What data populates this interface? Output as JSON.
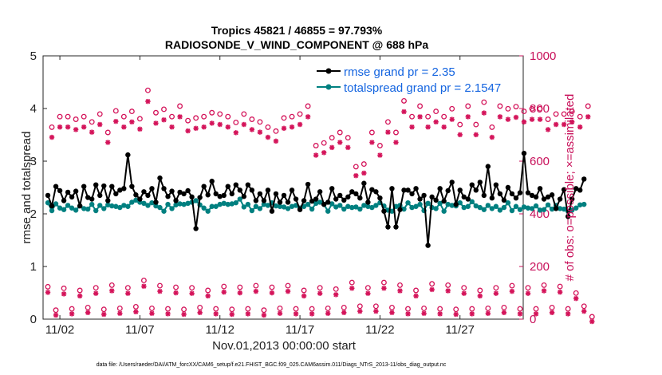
{
  "chart_data": {
    "type": "line",
    "title_line1": "Tropics 45821 / 46855 = 97.793%",
    "title_line2": "RADIOSONDE_V_WIND_COMPONENT @ 688 hPa",
    "xlabel": "Nov.01,2013 00:00:00 start",
    "ylabel_left": "rmse and totalspread",
    "ylabel_right": "# of obs: o=possible; ×=assimilated",
    "footnote": "data file: /Users/raeder/DAI/ATM_forcXX/CAM6_setup/f.e21.FHIST_BGC.f09_025.CAM6assim.011/Diags_NTrS_2013-11/obs_diag_output.nc",
    "xlim": [
      0.7,
      30.7
    ],
    "ylim_left": [
      0,
      5
    ],
    "ylim_right": [
      0,
      1000
    ],
    "x_ticks": [
      {
        "value": 1.75,
        "label": "11/02"
      },
      {
        "value": 6.75,
        "label": "11/07"
      },
      {
        "value": 11.75,
        "label": "11/12"
      },
      {
        "value": 16.75,
        "label": "11/17"
      },
      {
        "value": 21.75,
        "label": "11/22"
      },
      {
        "value": 26.75,
        "label": "11/27"
      }
    ],
    "y_ticks_left": [
      {
        "value": 0,
        "label": "0"
      },
      {
        "value": 1,
        "label": "1"
      },
      {
        "value": 2,
        "label": "2"
      },
      {
        "value": 3,
        "label": "3"
      },
      {
        "value": 4,
        "label": "4"
      },
      {
        "value": 5,
        "label": "5"
      }
    ],
    "y_ticks_right": [
      {
        "value": 0,
        "label": "0"
      },
      {
        "value": 200,
        "label": "200"
      },
      {
        "value": 400,
        "label": "400"
      },
      {
        "value": 600,
        "label": "600"
      },
      {
        "value": 800,
        "label": "800"
      },
      {
        "value": 1000,
        "label": "1000"
      }
    ],
    "x_step_days": 0.25,
    "series": [
      {
        "name": "rmse grand pr = 2.35",
        "axis": "left",
        "color": "#000000",
        "values": [
          2.35,
          2.15,
          2.52,
          2.44,
          2.25,
          2.41,
          2.32,
          2.43,
          2.15,
          2.52,
          2.31,
          2.28,
          2.55,
          2.35,
          2.53,
          2.25,
          2.52,
          2.38,
          2.45,
          2.48,
          3.12,
          2.52,
          2.36,
          2.28,
          2.42,
          2.35,
          2.48,
          2.22,
          2.68,
          2.48,
          2.33,
          2.43,
          2.25,
          2.41,
          2.38,
          2.44,
          2.32,
          1.72,
          2.31,
          2.52,
          2.36,
          2.62,
          2.38,
          2.33,
          2.35,
          2.52,
          2.38,
          2.55,
          2.45,
          2.33,
          2.55,
          2.45,
          2.25,
          2.38,
          2.25,
          2.45,
          2.05,
          2.38,
          2.22,
          2.35,
          2.22,
          2.45,
          2.28,
          2.08,
          2.25,
          2.56,
          2.24,
          2.28,
          2.42,
          2.18,
          2.22,
          2.48,
          2.28,
          2.35,
          2.26,
          2.32,
          2.42,
          2.38,
          2.3,
          2.58,
          2.22,
          2.46,
          2.42,
          2.3,
          2.05,
          1.75,
          2.48,
          1.75,
          2.08,
          2.45,
          2.45,
          2.38,
          2.48,
          2.28,
          2.35,
          1.4,
          2.32,
          2.26,
          2.48,
          2.24,
          2.44,
          2.6,
          2.18,
          2.45,
          2.32,
          2.28,
          2.55,
          2.45,
          2.6,
          2.35,
          2.9,
          2.3,
          2.55,
          2.38,
          2.26,
          2.5,
          2.38,
          2.3,
          2.4,
          3.15,
          2.4,
          2.35,
          2.32,
          2.48,
          2.28,
          2.32,
          2.36,
          2.1,
          2.28,
          2.46,
          1.95,
          2.28,
          2.48,
          2.45,
          2.66
        ]
      },
      {
        "name": "totalspread grand pr = 2.1547",
        "axis": "left",
        "color": "#008080",
        "values": [
          2.21,
          2.06,
          2.19,
          2.11,
          2.08,
          2.16,
          2.11,
          2.07,
          2.15,
          2.1,
          2.09,
          2.18,
          2.06,
          2.16,
          2.1,
          2.17,
          2.15,
          2.14,
          2.12,
          2.16,
          2.14,
          2.22,
          2.26,
          2.22,
          2.2,
          2.16,
          2.21,
          2.15,
          2.12,
          2.05,
          2.18,
          2.1,
          2.17,
          2.19,
          2.18,
          2.2,
          2.22,
          2.25,
          2.17,
          2.11,
          2.05,
          2.14,
          2.14,
          2.18,
          2.2,
          2.18,
          2.19,
          2.21,
          2.28,
          2.13,
          2.18,
          2.06,
          2.14,
          2.1,
          2.18,
          2.16,
          2.21,
          2.15,
          2.14,
          2.13,
          2.1,
          2.14,
          2.16,
          2.11,
          2.14,
          2.18,
          2.09,
          2.2,
          2.22,
          2.18,
          2.05,
          2.19,
          2.13,
          2.16,
          2.09,
          2.14,
          2.12,
          2.13,
          2.09,
          2.16,
          2.14,
          2.12,
          2.16,
          2.21,
          2.15,
          2.07,
          2.05,
          2.14,
          2.16,
          2.09,
          2.21,
          2.12,
          2.14,
          2.18,
          2.06,
          2.2,
          2.12,
          2.1,
          2.2,
          2.05,
          2.18,
          2.16,
          2.15,
          2.21,
          2.12,
          2.14,
          2.23,
          2.15,
          2.12,
          2.08,
          2.16,
          2.1,
          2.14,
          2.07,
          2.12,
          2.21,
          2.06,
          2.14,
          2.08,
          2.13,
          2.11,
          2.1,
          2.15,
          2.07,
          2.08,
          2.17,
          2.09,
          2.16,
          2.1,
          2.09,
          2.05,
          2.07,
          2.11,
          2.17,
          2.18
        ]
      }
    ],
    "obs_counts": {
      "axis": "right",
      "color": "#d4145a",
      "possible": [
        114,
        720,
        25,
        760,
        108,
        760,
        30,
        750,
        100,
        760,
        35,
        740,
        110,
        770,
        28,
        700,
        120,
        782,
        32,
        760,
        110,
        780,
        38,
        752,
        138,
        860,
        32,
        775,
        118,
        788,
        30,
        760,
        112,
        800,
        28,
        745,
        110,
        755,
        35,
        760,
        100,
        775,
        30,
        770,
        115,
        760,
        28,
        738,
        112,
        770,
        30,
        750,
        118,
        740,
        25,
        720,
        112,
        705,
        32,
        755,
        118,
        760,
        30,
        770,
        100,
        800,
        30,
        650,
        110,
        660,
        32,
        680,
        105,
        700,
        35,
        680,
        130,
        570,
        40,
        580,
        110,
        700,
        40,
        650,
        130,
        740,
        35,
        700,
        120,
        820,
        30,
        760,
        100,
        800,
        32,
        760,
        125,
        780,
        30,
        760,
        120,
        790,
        28,
        730,
        110,
        800,
        30,
        730,
        100,
        815,
        32,
        720,
        110,
        800,
        35,
        790,
        118,
        798,
        30,
        780,
        110,
        790,
        30,
        790,
        120,
        750,
        35,
        770,
        115,
        770,
        30,
        780,
        90,
        760,
        40,
        800,
        0
      ]
    },
    "legend": [
      {
        "label": "rmse grand pr = 2.35"
      },
      {
        "label": "totalspread grand pr = 2.1547"
      }
    ]
  }
}
